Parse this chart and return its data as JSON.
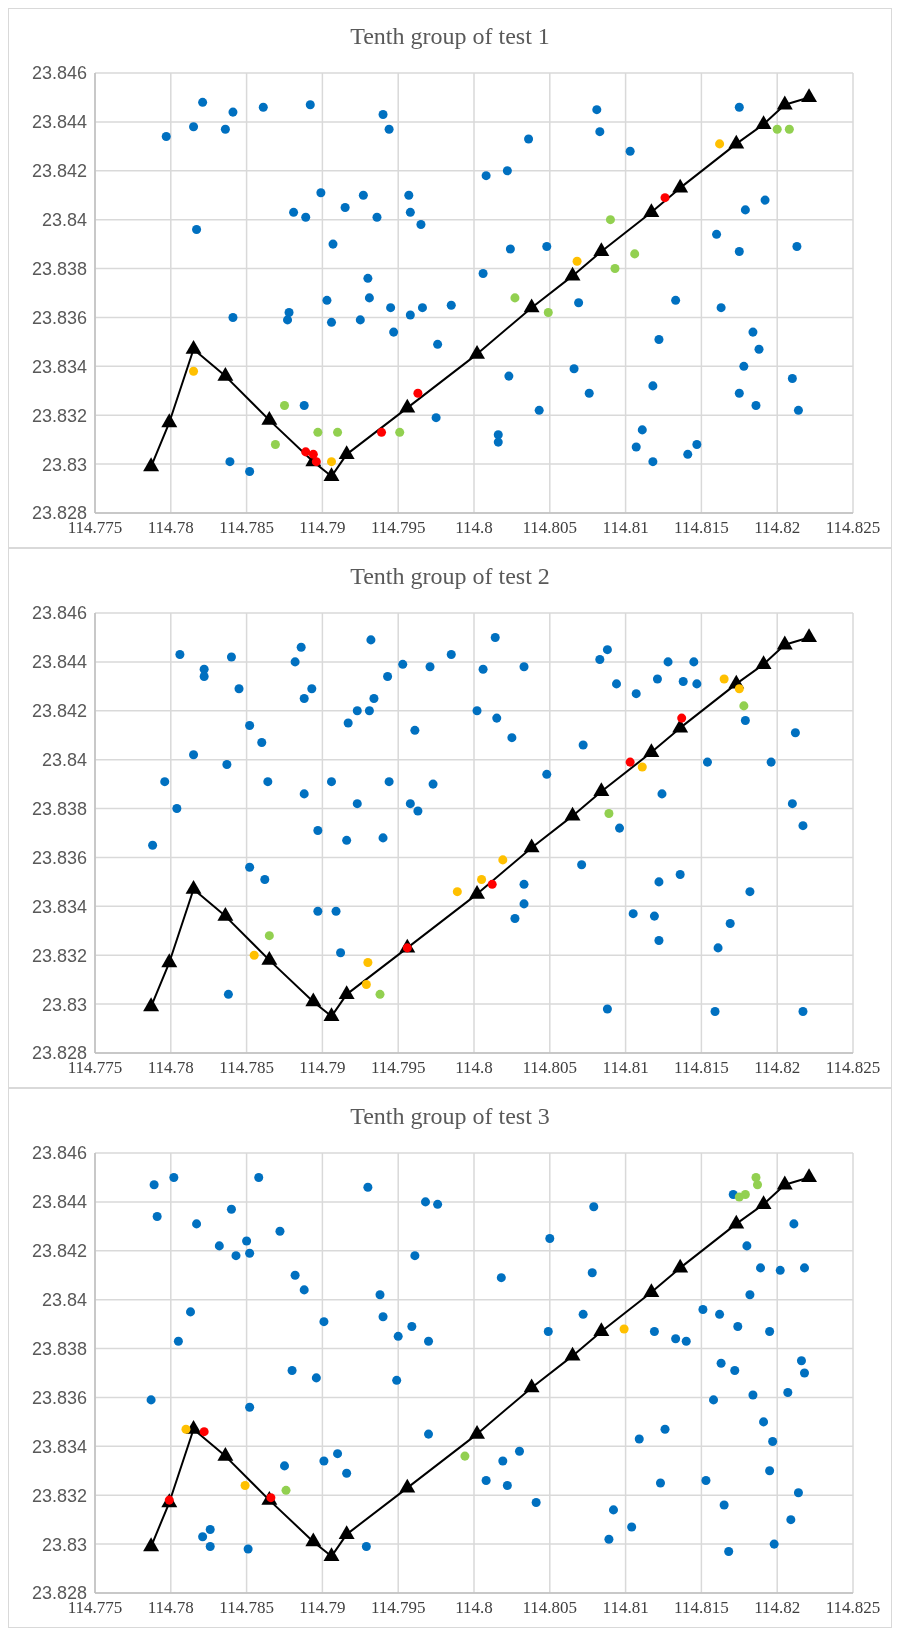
{
  "chart_data": [
    {
      "type": "scatter",
      "title": "Tenth group of test 1",
      "marker": "circle",
      "grid": true,
      "xlim": [
        114.775,
        114.825
      ],
      "xticks": [
        114.775,
        114.78,
        114.785,
        114.79,
        114.795,
        114.8,
        114.805,
        114.81,
        114.815,
        114.82,
        114.825
      ],
      "ylim": [
        23.828,
        23.846
      ],
      "yticks": [
        23.828,
        23.83,
        23.832,
        23.834,
        23.836,
        23.838,
        23.84,
        23.842,
        23.844,
        23.846
      ],
      "series": [
        {
          "type": "line",
          "color": "#000000",
          "marker": "triangle",
          "x": [
            114.7787,
            114.7799,
            114.7815,
            114.7836,
            114.7865,
            114.7894,
            114.7906,
            114.7916,
            114.7956,
            114.8002,
            114.8038,
            114.8065,
            114.8084,
            114.8117,
            114.8136,
            114.8173,
            114.8191,
            114.8205,
            114.8221
          ],
          "values": [
            23.8299,
            23.8317,
            23.8347,
            23.8336,
            23.8318,
            23.8301,
            23.8295,
            23.8304,
            23.8323,
            23.8345,
            23.8364,
            23.8377,
            23.8387,
            23.8403,
            23.8413,
            23.8431,
            23.8439,
            23.8447,
            23.845
          ]
        },
        {
          "color": "#0070c0",
          "x": [
            114.7797,
            114.7815,
            114.7821,
            114.7836,
            114.7841,
            114.7861,
            114.7892,
            114.794,
            114.7944,
            114.7817,
            114.7899,
            114.7927,
            114.7915,
            114.7881,
            114.7889,
            114.7936,
            114.7958,
            114.7965,
            114.7907,
            114.793,
            114.7903,
            114.7931,
            114.7945,
            114.7958,
            114.7841,
            114.7878,
            114.7877,
            114.7906,
            114.7925,
            114.7947,
            114.7976,
            114.7888,
            114.7975,
            114.7839,
            114.7852,
            114.8081,
            114.8083,
            114.8036,
            114.8103,
            114.8008,
            114.8022,
            114.7957,
            114.8024,
            114.8048,
            114.8006,
            114.7985,
            114.7966,
            114.8069,
            114.8133,
            114.816,
            114.8175,
            114.8179,
            114.8192,
            114.8213,
            114.8163,
            114.8122,
            114.8184,
            114.8188,
            114.8178,
            114.8023,
            114.8066,
            114.8076,
            114.8118,
            114.8175,
            114.8186,
            114.821,
            114.8214,
            114.8043,
            114.8016,
            114.8016,
            114.8111,
            114.8107,
            114.8118,
            114.8141,
            114.8147,
            114.8175
          ],
          "values": [
            23.8434,
            23.8438,
            23.8448,
            23.8437,
            23.8444,
            23.8446,
            23.8447,
            23.8443,
            23.8437,
            23.8396,
            23.8411,
            23.841,
            23.8405,
            23.8403,
            23.8401,
            23.8401,
            23.8403,
            23.8398,
            23.839,
            23.8376,
            23.8367,
            23.8368,
            23.8364,
            23.8361,
            23.836,
            23.8362,
            23.8359,
            23.8358,
            23.8359,
            23.8354,
            23.8349,
            23.8324,
            23.8319,
            23.8301,
            23.8297,
            23.8445,
            23.8436,
            23.8433,
            23.8428,
            23.8418,
            23.842,
            23.841,
            23.8388,
            23.8389,
            23.8378,
            23.8365,
            23.8364,
            23.8366,
            23.8367,
            23.8394,
            23.8387,
            23.8404,
            23.8408,
            23.8389,
            23.8364,
            23.8351,
            23.8354,
            23.8347,
            23.834,
            23.8336,
            23.8339,
            23.8329,
            23.8332,
            23.8329,
            23.8324,
            23.8335,
            23.8322,
            23.8322,
            23.8312,
            23.8309,
            23.8314,
            23.8307,
            23.8301,
            23.8304,
            23.8308,
            23.8446
          ]
        },
        {
          "color": "#92d050",
          "x": [
            114.7875,
            114.7869,
            114.7897,
            114.791,
            114.7951,
            114.809,
            114.8106,
            114.8093,
            114.8027,
            114.8049,
            114.82,
            114.8208
          ],
          "values": [
            23.8324,
            23.8308,
            23.8313,
            23.8313,
            23.8313,
            23.84,
            23.8386,
            23.838,
            23.8368,
            23.8362,
            23.8437,
            23.8437
          ]
        },
        {
          "color": "#ffc000",
          "x": [
            114.7815,
            114.7906,
            114.8068,
            114.8162
          ],
          "values": [
            23.8338,
            23.8301,
            23.8383,
            23.8431
          ]
        },
        {
          "color": "#ff0000",
          "x": [
            114.7889,
            114.7894,
            114.7896,
            114.7939,
            114.7963,
            114.8126
          ],
          "values": [
            23.8305,
            23.8304,
            23.8301,
            23.8313,
            23.8329,
            23.8409
          ]
        }
      ]
    },
    {
      "type": "scatter",
      "title": "Tenth group of test 2",
      "marker": "circle",
      "grid": true,
      "xlim": [
        114.775,
        114.825
      ],
      "xticks": [
        114.775,
        114.78,
        114.785,
        114.79,
        114.795,
        114.8,
        114.805,
        114.81,
        114.815,
        114.82,
        114.825
      ],
      "ylim": [
        23.828,
        23.846
      ],
      "yticks": [
        23.828,
        23.83,
        23.832,
        23.834,
        23.836,
        23.838,
        23.84,
        23.842,
        23.844,
        23.846
      ],
      "series": [
        {
          "type": "line",
          "color": "#000000",
          "marker": "triangle",
          "x": [
            114.7787,
            114.7799,
            114.7815,
            114.7836,
            114.7865,
            114.7894,
            114.7906,
            114.7916,
            114.7956,
            114.8002,
            114.8038,
            114.8065,
            114.8084,
            114.8117,
            114.8136,
            114.8173,
            114.8191,
            114.8205,
            114.8221
          ],
          "values": [
            23.8299,
            23.8317,
            23.8347,
            23.8336,
            23.8318,
            23.8301,
            23.8295,
            23.8304,
            23.8323,
            23.8345,
            23.8364,
            23.8377,
            23.8387,
            23.8403,
            23.8413,
            23.8431,
            23.8439,
            23.8447,
            23.845
          ]
        },
        {
          "color": "#0070c0",
          "x": [
            114.7788,
            114.7796,
            114.7804,
            114.7815,
            114.7806,
            114.7822,
            114.7822,
            114.784,
            114.7845,
            114.7837,
            114.7852,
            114.786,
            114.7864,
            114.7852,
            114.7862,
            114.7838,
            114.7882,
            114.7886,
            114.7888,
            114.7893,
            114.7888,
            114.7897,
            114.7897,
            114.7909,
            114.7912,
            114.7906,
            114.7916,
            114.7923,
            114.7917,
            114.7923,
            114.7931,
            114.7934,
            114.7932,
            114.7943,
            114.7953,
            114.7971,
            114.7944,
            114.7961,
            114.7958,
            114.7963,
            114.794,
            114.7973,
            114.7985,
            114.8014,
            114.8006,
            114.8033,
            114.8002,
            114.8015,
            114.8025,
            114.8048,
            114.8072,
            114.8083,
            114.8088,
            114.8094,
            114.8107,
            114.8121,
            114.8128,
            114.8138,
            114.8145,
            114.8147,
            114.8179,
            114.8212,
            114.8154,
            114.8196,
            114.8124,
            114.821,
            114.8217,
            114.8096,
            114.8071,
            114.8033,
            114.8033,
            114.8027,
            114.8122,
            114.8136,
            114.8182,
            114.8105,
            114.8119,
            114.8122,
            114.8169,
            114.8161,
            114.8088,
            114.8159,
            114.8217
          ],
          "values": [
            23.8365,
            23.8391,
            23.838,
            23.8402,
            23.8443,
            23.8437,
            23.8434,
            23.8442,
            23.8429,
            23.8398,
            23.8414,
            23.8407,
            23.8391,
            23.8356,
            23.8351,
            23.8304,
            23.844,
            23.8446,
            23.8425,
            23.8429,
            23.8386,
            23.8371,
            23.8338,
            23.8338,
            23.8321,
            23.8391,
            23.8367,
            23.8382,
            23.8415,
            23.842,
            23.842,
            23.8425,
            23.8449,
            23.8434,
            23.8439,
            23.8438,
            23.8391,
            23.8412,
            23.8382,
            23.8379,
            23.8368,
            23.839,
            23.8443,
            23.845,
            23.8437,
            23.8438,
            23.842,
            23.8417,
            23.8409,
            23.8394,
            23.8406,
            23.8441,
            23.8445,
            23.8431,
            23.8427,
            23.8433,
            23.844,
            23.8432,
            23.844,
            23.8431,
            23.8416,
            23.8411,
            23.8399,
            23.8399,
            23.8386,
            23.8382,
            23.8373,
            23.8372,
            23.8357,
            23.8349,
            23.8341,
            23.8335,
            23.835,
            23.8353,
            23.8346,
            23.8337,
            23.8336,
            23.8326,
            23.8333,
            23.8323,
            23.8298,
            23.8297,
            23.8297
          ]
        },
        {
          "color": "#92d050",
          "x": [
            114.7865,
            114.7938,
            114.8089,
            114.8178
          ],
          "values": [
            23.8328,
            23.8304,
            23.8378,
            23.8422
          ]
        },
        {
          "color": "#ffc000",
          "x": [
            114.7855,
            114.793,
            114.7929,
            114.7989,
            114.8005,
            114.8019,
            114.8111,
            114.8165,
            114.8175
          ],
          "values": [
            23.832,
            23.8317,
            23.8308,
            23.8346,
            23.8351,
            23.8359,
            23.8397,
            23.8433,
            23.8429
          ]
        },
        {
          "color": "#ff0000",
          "x": [
            114.7956,
            114.8012,
            114.8103,
            114.8137
          ],
          "values": [
            23.8323,
            23.8349,
            23.8399,
            23.8417
          ]
        }
      ]
    },
    {
      "type": "scatter",
      "title": "Tenth group of test 3",
      "marker": "circle",
      "grid": true,
      "xlim": [
        114.775,
        114.825
      ],
      "xticks": [
        114.775,
        114.78,
        114.785,
        114.79,
        114.795,
        114.8,
        114.805,
        114.81,
        114.815,
        114.82,
        114.825
      ],
      "ylim": [
        23.828,
        23.846
      ],
      "yticks": [
        23.828,
        23.83,
        23.832,
        23.834,
        23.836,
        23.838,
        23.84,
        23.842,
        23.844,
        23.846
      ],
      "series": [
        {
          "type": "line",
          "color": "#000000",
          "marker": "triangle",
          "x": [
            114.7787,
            114.7799,
            114.7815,
            114.7836,
            114.7865,
            114.7894,
            114.7906,
            114.7916,
            114.7956,
            114.8002,
            114.8038,
            114.8065,
            114.8084,
            114.8117,
            114.8136,
            114.8173,
            114.8191,
            114.8205,
            114.8221
          ],
          "values": [
            23.8299,
            23.8317,
            23.8347,
            23.8336,
            23.8318,
            23.8301,
            23.8295,
            23.8304,
            23.8323,
            23.8345,
            23.8364,
            23.8377,
            23.8387,
            23.8403,
            23.8413,
            23.8431,
            23.8439,
            23.8447,
            23.845
          ]
        },
        {
          "color": "#0070c0",
          "x": [
            114.7789,
            114.7802,
            114.7791,
            114.7817,
            114.784,
            114.7858,
            114.7832,
            114.7843,
            114.785,
            114.7852,
            114.7872,
            114.7882,
            114.7888,
            114.793,
            114.7968,
            114.7976,
            114.7961,
            114.7813,
            114.7805,
            114.7901,
            114.7938,
            114.794,
            114.795,
            114.7959,
            114.797,
            114.788,
            114.7896,
            114.7949,
            114.7787,
            114.7852,
            114.797,
            114.7875,
            114.7901,
            114.791,
            114.7916,
            114.7821,
            114.7826,
            114.7826,
            114.7851,
            114.7929,
            114.8079,
            114.805,
            114.8018,
            114.8078,
            114.8072,
            114.8049,
            114.8171,
            114.8211,
            114.818,
            114.8189,
            114.8202,
            114.8218,
            114.8182,
            114.8151,
            114.8162,
            114.8174,
            114.8195,
            114.8119,
            114.8133,
            114.814,
            114.8163,
            114.8172,
            114.8216,
            114.8218,
            114.8158,
            114.8184,
            114.8207,
            114.8191,
            114.8197,
            114.8109,
            114.8126,
            114.803,
            114.8019,
            114.8008,
            114.8022,
            114.8041,
            114.8123,
            114.8153,
            114.8195,
            114.8214,
            114.8165,
            114.8209,
            114.8092,
            114.8104,
            114.8089,
            114.8168,
            114.8198
          ],
          "values": [
            23.8447,
            23.845,
            23.8434,
            23.8431,
            23.8437,
            23.845,
            23.8422,
            23.8418,
            23.8424,
            23.8419,
            23.8428,
            23.841,
            23.8404,
            23.8446,
            23.844,
            23.8439,
            23.8418,
            23.8395,
            23.8383,
            23.8391,
            23.8402,
            23.8393,
            23.8385,
            23.8389,
            23.8383,
            23.8371,
            23.8368,
            23.8367,
            23.8359,
            23.8356,
            23.8345,
            23.8332,
            23.8334,
            23.8337,
            23.8329,
            23.8303,
            23.8306,
            23.8299,
            23.8298,
            23.8299,
            23.8438,
            23.8425,
            23.8409,
            23.8411,
            23.8394,
            23.8387,
            23.8443,
            23.8431,
            23.8422,
            23.8413,
            23.8412,
            23.8413,
            23.8402,
            23.8396,
            23.8394,
            23.8389,
            23.8387,
            23.8387,
            23.8384,
            23.8383,
            23.8374,
            23.8371,
            23.8375,
            23.837,
            23.8359,
            23.8361,
            23.8362,
            23.835,
            23.8342,
            23.8343,
            23.8347,
            23.8338,
            23.8334,
            23.8326,
            23.8324,
            23.8317,
            23.8325,
            23.8326,
            23.833,
            23.8321,
            23.8316,
            23.831,
            23.8314,
            23.8307,
            23.8302,
            23.8297,
            23.83
          ]
        },
        {
          "color": "#92d050",
          "x": [
            114.7876,
            114.7994,
            114.8175,
            114.8179,
            114.8186,
            114.8187
          ],
          "values": [
            23.8322,
            23.8336,
            23.8442,
            23.8443,
            23.845,
            23.8447
          ]
        },
        {
          "color": "#ffc000",
          "x": [
            114.781,
            114.7849,
            114.8099
          ],
          "values": [
            23.8347,
            23.8324,
            23.8388
          ]
        },
        {
          "color": "#ff0000",
          "x": [
            114.7799,
            114.7822,
            114.7866
          ],
          "values": [
            23.8318,
            23.8346,
            23.8319
          ]
        }
      ]
    }
  ]
}
